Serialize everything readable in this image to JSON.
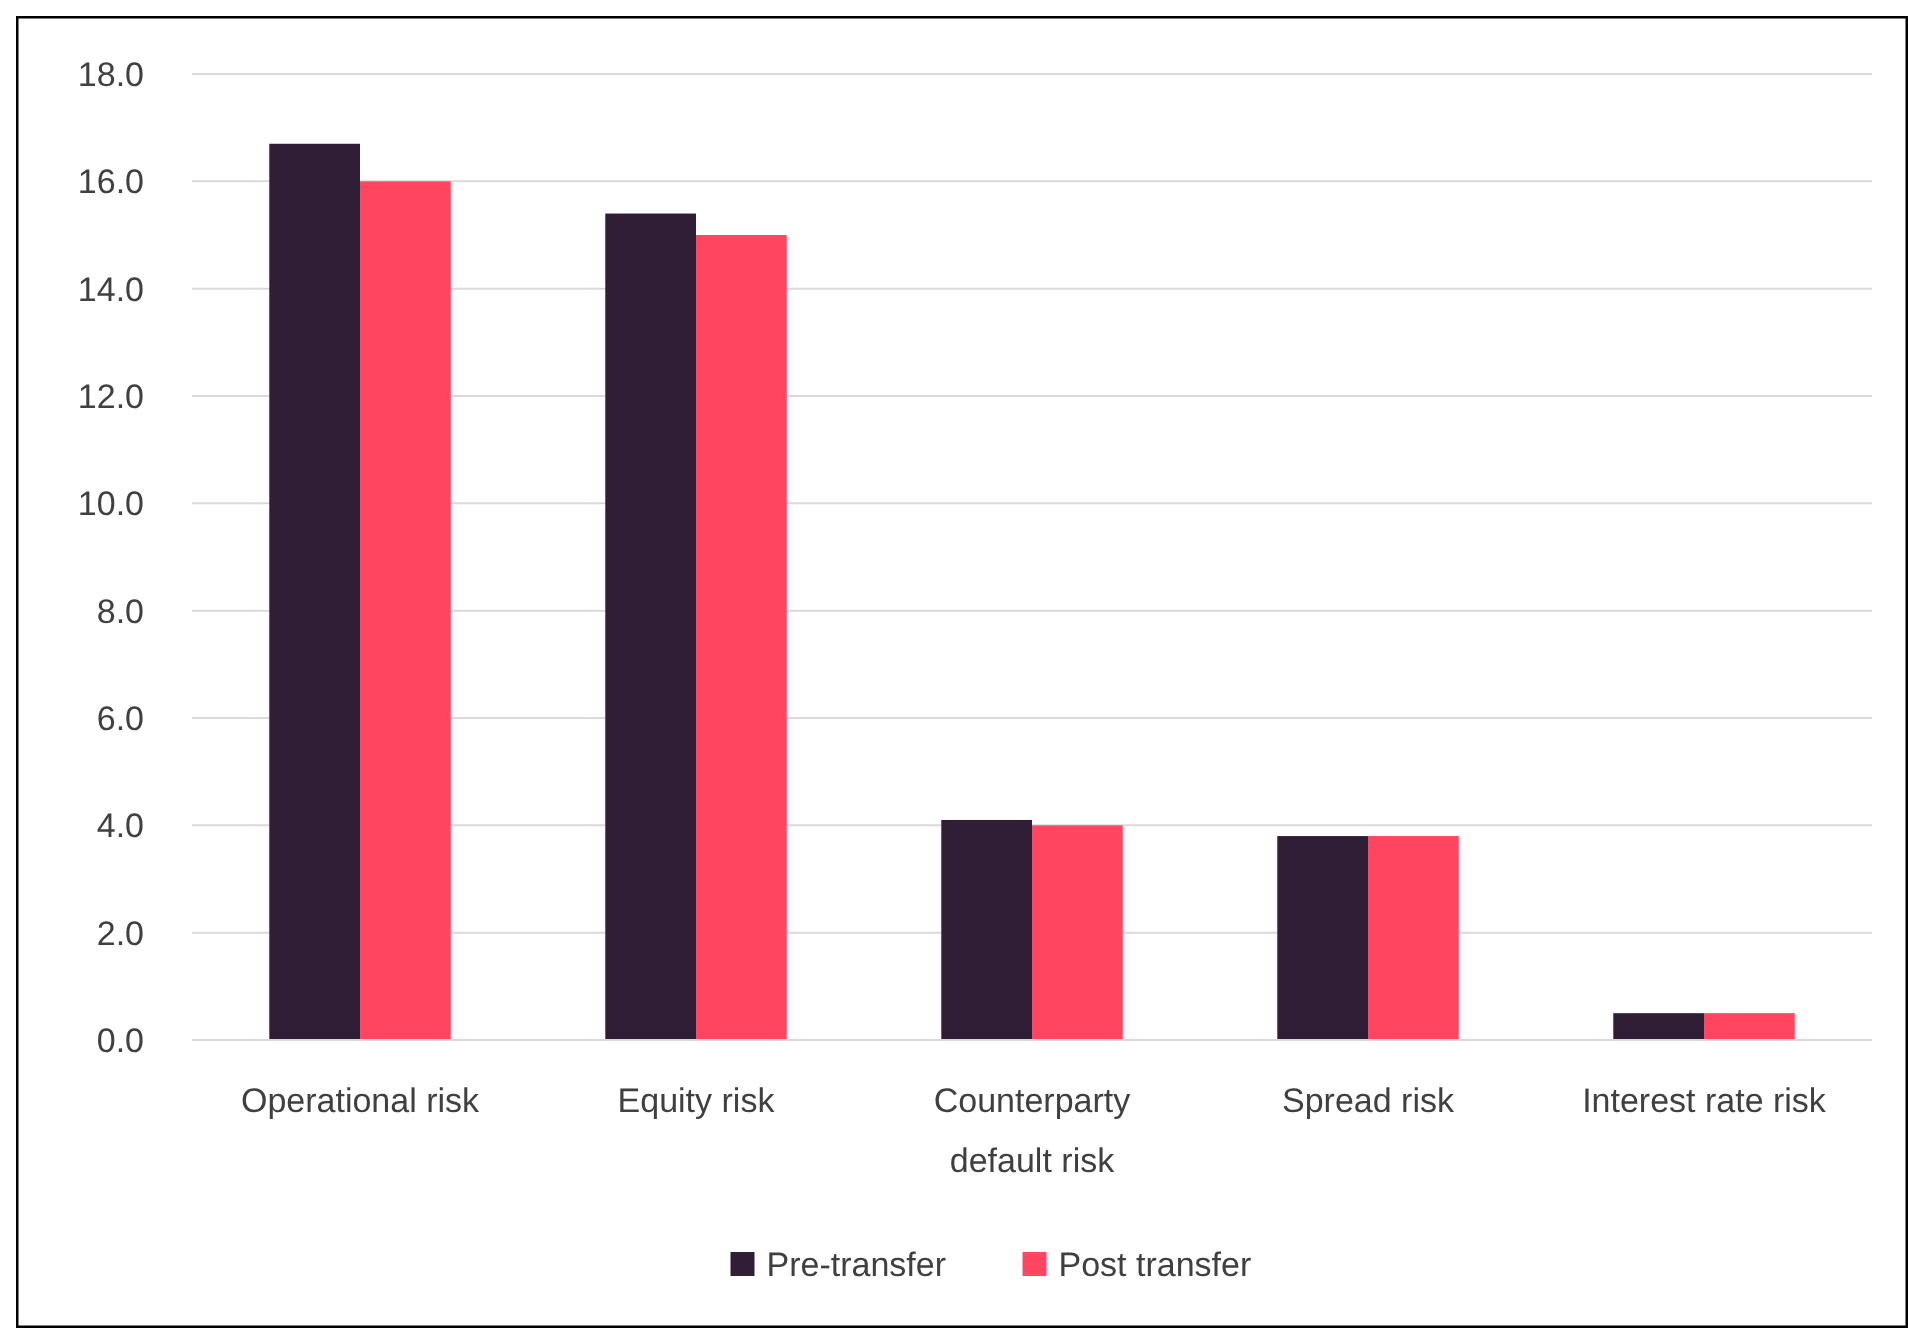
{
  "chart_data": {
    "type": "bar",
    "categories": [
      "Operational risk",
      "Equity risk",
      "Counterparty default risk",
      "Spread risk",
      "Interest rate risk"
    ],
    "series": [
      {
        "name": "Pre-transfer",
        "color": "#301e36",
        "values": [
          16.7,
          15.4,
          4.1,
          3.8,
          0.5
        ]
      },
      {
        "name": "Post transfer",
        "color": "#ff4560",
        "values": [
          16.0,
          15.0,
          4.0,
          3.8,
          0.5
        ]
      }
    ],
    "ylim": [
      0,
      18
    ],
    "yticks": [
      {
        "value": 0,
        "label": "0.0"
      },
      {
        "value": 2,
        "label": "2.0"
      },
      {
        "value": 4,
        "label": "4.0"
      },
      {
        "value": 6,
        "label": "6.0"
      },
      {
        "value": 8,
        "label": "8.0"
      },
      {
        "value": 10,
        "label": "10.0"
      },
      {
        "value": 12,
        "label": "12.0"
      },
      {
        "value": 14,
        "label": "14.0"
      },
      {
        "value": 16,
        "label": "16.0"
      },
      {
        "value": 18,
        "label": "18.0"
      }
    ],
    "grid": "y",
    "legend": "bottom"
  }
}
